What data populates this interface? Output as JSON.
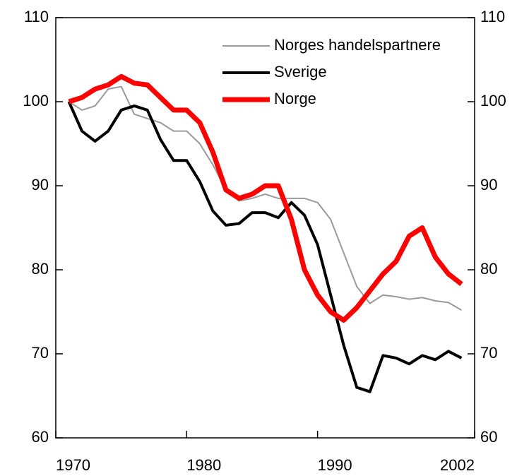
{
  "chart_data": {
    "type": "line",
    "x": [
      1971,
      1972,
      1973,
      1974,
      1975,
      1976,
      1977,
      1978,
      1979,
      1980,
      1981,
      1982,
      1983,
      1984,
      1985,
      1986,
      1987,
      1988,
      1989,
      1990,
      1991,
      1992,
      1993,
      1994,
      1995,
      1996,
      1997,
      1998,
      1999,
      2000,
      2001
    ],
    "series": [
      {
        "name": "Norges handelspartnere",
        "color": "#9a9a9a",
        "width": 2,
        "values": [
          100,
          99,
          99.5,
          101.5,
          101.8,
          98.5,
          98,
          97.5,
          96.5,
          96.5,
          95,
          92.5,
          89.5,
          88.2,
          88.5,
          89,
          88.5,
          88.5,
          88.5,
          88,
          86,
          82,
          78,
          76,
          77,
          76.8,
          76.5,
          76.7,
          76.3,
          76.1,
          75.2
        ]
      },
      {
        "name": "Sverige",
        "color": "#000000",
        "width": 4,
        "values": [
          100,
          96.5,
          95.3,
          96.5,
          99,
          99.5,
          99,
          95.5,
          93,
          93,
          90.5,
          87,
          85.3,
          85.5,
          86.8,
          86.8,
          86.2,
          88,
          86.5,
          83,
          77,
          71,
          66,
          65.5,
          69.8,
          69.5,
          68.8,
          69.8,
          69.3,
          70.3,
          69.5
        ]
      },
      {
        "name": "Norge",
        "color": "#ff0000",
        "width": 7,
        "values": [
          100,
          100.5,
          101.5,
          102,
          103,
          102.2,
          102,
          100.5,
          99,
          99,
          97.5,
          94,
          89.5,
          88.5,
          89,
          90,
          90,
          86,
          80,
          77,
          75,
          74,
          75.5,
          77.5,
          79.5,
          81,
          84,
          85,
          81.5,
          79.5,
          78.3
        ]
      }
    ],
    "xlim": [
      1970,
      2002
    ],
    "xticks": [
      1970,
      1980,
      1990,
      2002
    ],
    "ylim": [
      60,
      110
    ],
    "yticks": [
      60,
      70,
      80,
      90,
      100,
      110
    ],
    "y2lim": [
      60,
      110
    ],
    "y2ticks": [
      60,
      70,
      80,
      90,
      100,
      110
    ]
  }
}
